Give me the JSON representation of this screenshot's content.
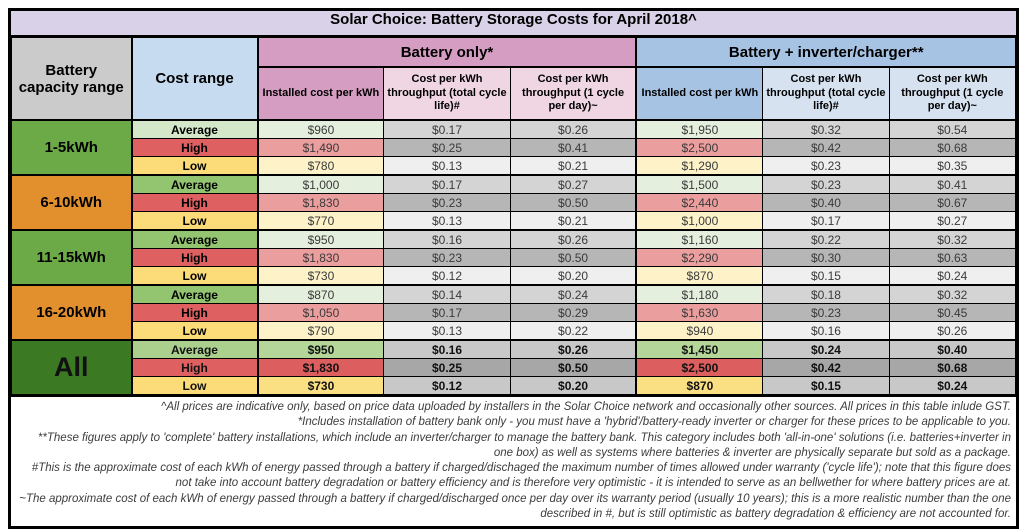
{
  "chart_data": {
    "type": "table",
    "title": "Solar Choice: Battery Storage Costs for April 2018^",
    "header": {
      "capacity": "Battery capacity range",
      "cost_range": "Cost range",
      "group_battery_only": "Battery only*",
      "group_battery_inverter": "Battery + inverter/charger**",
      "sub": [
        "Installed cost per kWh",
        "Cost per kWh throughput (total cycle life)#",
        "Cost per kWh throughput (1 cycle per day)~"
      ]
    },
    "columns": [
      "Battery only - Installed cost per kWh",
      "Battery only - Cost per kWh throughput (total cycle life)#",
      "Battery only - Cost per kWh throughput (1 cycle per day)~",
      "Battery + inverter/charger - Installed cost per kWh",
      "Battery + inverter/charger - Cost per kWh throughput (total cycle life)#",
      "Battery + inverter/charger - Cost per kWh throughput (1 cycle per day)~"
    ],
    "groups": [
      {
        "capacity": "1-5kWh",
        "capacity_class": "cap-green",
        "all": false,
        "avg_label_shade": "light",
        "rows": [
          {
            "label": "Average",
            "values": [
              "$960",
              "$0.17",
              "$0.26",
              "$1,950",
              "$0.32",
              "$0.54"
            ]
          },
          {
            "label": "High",
            "values": [
              "$1,490",
              "$0.25",
              "$0.41",
              "$2,500",
              "$0.42",
              "$0.68"
            ]
          },
          {
            "label": "Low",
            "values": [
              "$780",
              "$0.13",
              "$0.21",
              "$1,290",
              "$0.23",
              "$0.35"
            ]
          }
        ]
      },
      {
        "capacity": "6-10kWh",
        "capacity_class": "cap-orange",
        "all": false,
        "avg_label_shade": "medium",
        "rows": [
          {
            "label": "Average",
            "values": [
              "$1,000",
              "$0.17",
              "$0.27",
              "$1,500",
              "$0.23",
              "$0.41"
            ]
          },
          {
            "label": "High",
            "values": [
              "$1,830",
              "$0.23",
              "$0.50",
              "$2,440",
              "$0.40",
              "$0.67"
            ]
          },
          {
            "label": "Low",
            "values": [
              "$770",
              "$0.13",
              "$0.21",
              "$1,000",
              "$0.17",
              "$0.27"
            ]
          }
        ]
      },
      {
        "capacity": "11-15kWh",
        "capacity_class": "cap-green",
        "all": false,
        "avg_label_shade": "medium",
        "rows": [
          {
            "label": "Average",
            "values": [
              "$950",
              "$0.16",
              "$0.26",
              "$1,160",
              "$0.22",
              "$0.32"
            ]
          },
          {
            "label": "High",
            "values": [
              "$1,830",
              "$0.23",
              "$0.50",
              "$2,290",
              "$0.30",
              "$0.63"
            ]
          },
          {
            "label": "Low",
            "values": [
              "$730",
              "$0.12",
              "$0.20",
              "$870",
              "$0.15",
              "$0.24"
            ]
          }
        ]
      },
      {
        "capacity": "16-20kWh",
        "capacity_class": "cap-orange",
        "all": false,
        "avg_label_shade": "medium",
        "rows": [
          {
            "label": "Average",
            "values": [
              "$870",
              "$0.14",
              "$0.24",
              "$1,180",
              "$0.18",
              "$0.32"
            ]
          },
          {
            "label": "High",
            "values": [
              "$1,050",
              "$0.17",
              "$0.29",
              "$1,630",
              "$0.23",
              "$0.45"
            ]
          },
          {
            "label": "Low",
            "values": [
              "$790",
              "$0.13",
              "$0.22",
              "$940",
              "$0.16",
              "$0.26"
            ]
          }
        ]
      },
      {
        "capacity": "All",
        "capacity_class": "cap-all",
        "all": true,
        "avg_label_shade": "all",
        "rows": [
          {
            "label": "Average",
            "values": [
              "$950",
              "$0.16",
              "$0.26",
              "$1,450",
              "$0.24",
              "$0.40"
            ]
          },
          {
            "label": "High",
            "values": [
              "$1,830",
              "$0.25",
              "$0.50",
              "$2,500",
              "$0.42",
              "$0.68"
            ]
          },
          {
            "label": "Low",
            "values": [
              "$730",
              "$0.12",
              "$0.20",
              "$870",
              "$0.15",
              "$0.24"
            ]
          }
        ]
      }
    ]
  },
  "footnotes": [
    "^All prices are indicative only, based on price data uploaded by installers in the Solar Choice network and occasionally other sources. All prices in this table inlude GST.",
    "*Includes installation of battery bank only - you must have a 'hybrid'/battery-ready inverter or charger for these prices to be applicable to you.",
    "**These figures apply to 'complete' battery installations, which include an inverter/charger to manage the battery bank. This category includes both 'all-in-one' solutions (i.e. batteries+inverter in one box) as well as systems where batteries & inverter are physically separate but sold as a package.",
    "#This is the approximate cost of each kWh of energy passed through a battery if charged/dischaged the maximum number of times allowed under warranty ('cycle life'); note that this figure does not take into account battery degradation or battery efficiency and is therefore very optimistic - it is intended to serve as an bellwether for where battery prices are at.",
    "~The approximate cost of each kWh of energy passed through a battery if charged/discharged once per day over its warranty period (usually 10 years); this is a more realistic number than the one described in #, but is still optimistic as battery degradation & efficiency are not accounted for."
  ],
  "colors": {
    "title_bg": "#d8d1e7",
    "capacity_header_bg": "#cbcbcb",
    "cost_range_header_bg": "#c7dbf0",
    "battery_only_bg": "#d69dc2",
    "battery_only_light_bg": "#efd6e2",
    "battery_inverter_bg": "#a6c3e4",
    "battery_inverter_light_bg": "#d7e2f0",
    "capacity_green": "#6caa47",
    "capacity_orange": "#e2902e",
    "capacity_all_green": "#3b7a22",
    "average_red_green_yellow": [
      "#93c470",
      "#de6060",
      "#fbdc78"
    ]
  }
}
